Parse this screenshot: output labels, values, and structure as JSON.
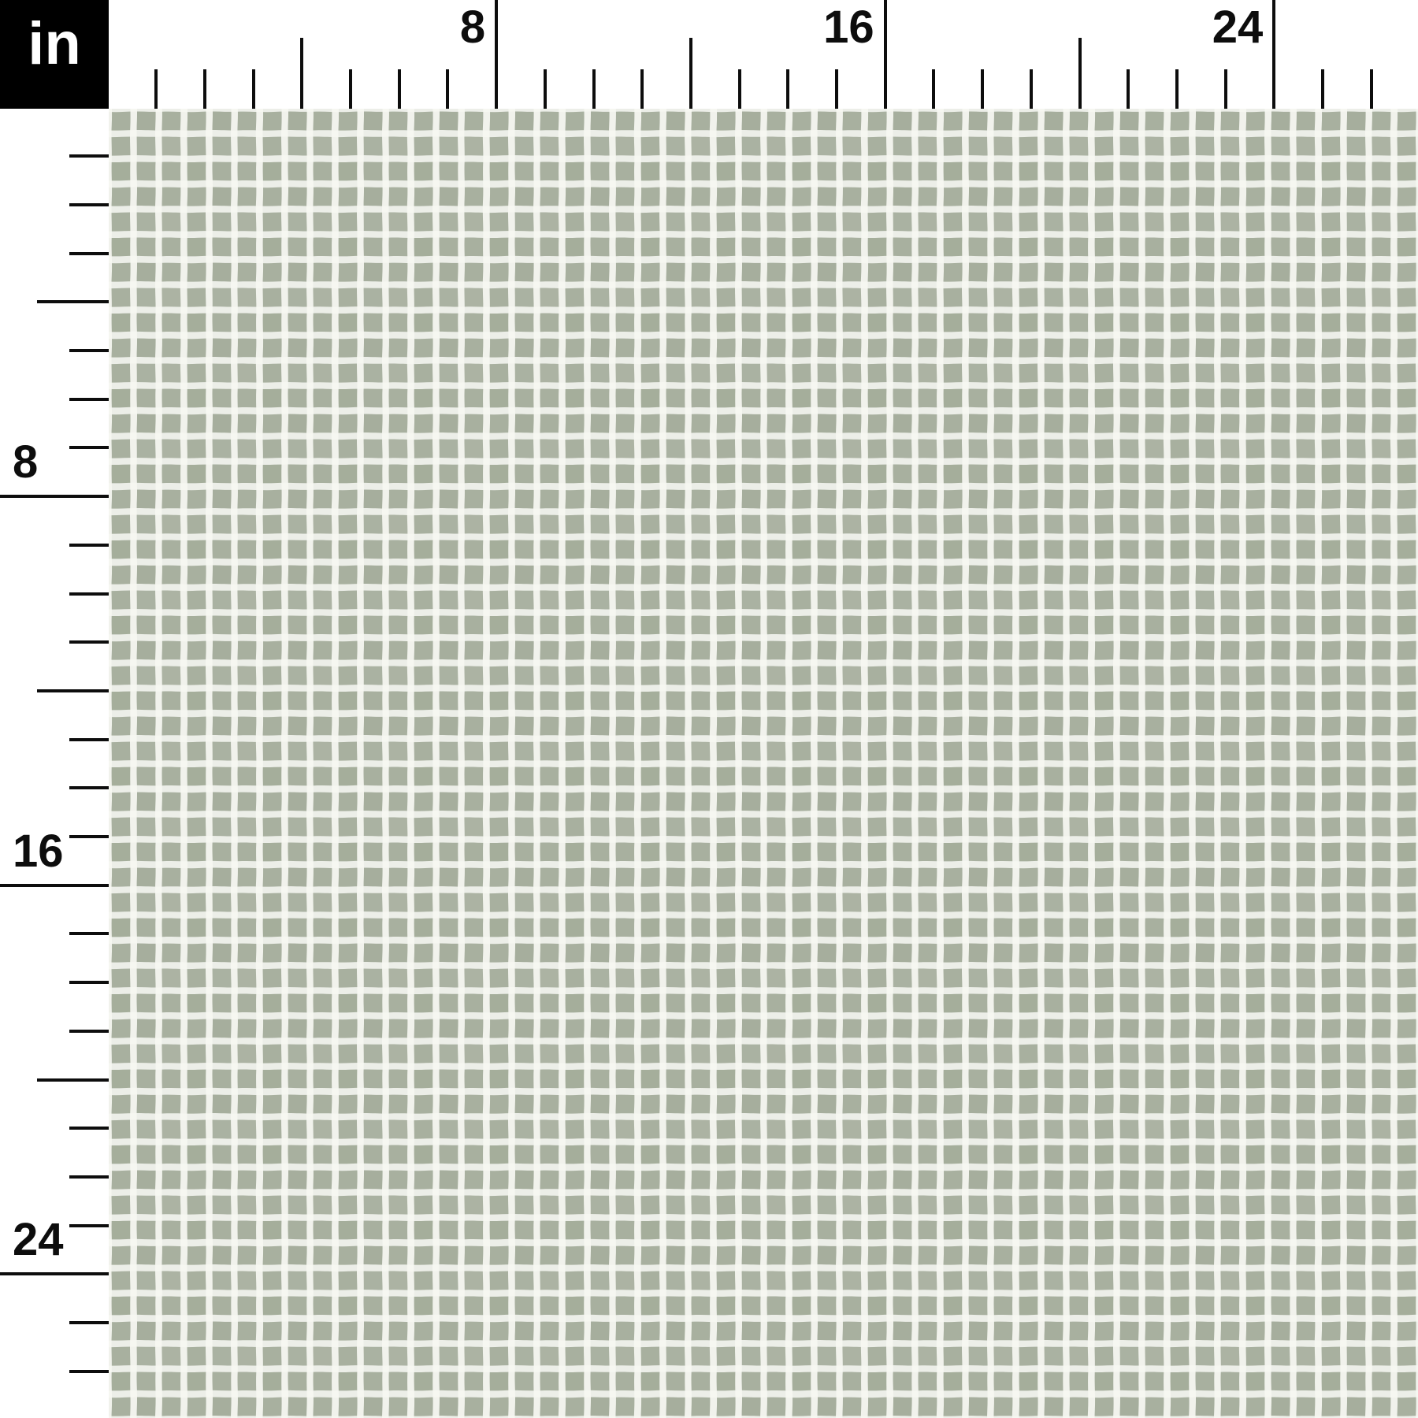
{
  "unit_box": {
    "label": "in"
  },
  "ruler": {
    "unit": "inches",
    "tick_interval_inches": 1,
    "visible_inches": 26,
    "medium_tick_inches": [
      4,
      12,
      20
    ],
    "major_tick_inches": [
      8,
      16,
      24
    ],
    "labels": [
      {
        "inch": 8,
        "text": "8"
      },
      {
        "inch": 16,
        "text": "16"
      },
      {
        "inch": 24,
        "text": "24"
      }
    ]
  },
  "fabric": {
    "pattern": "white gingham grid on sage green"
  },
  "colors": {
    "ruler_ink": "#0d0d0d",
    "ruler_bg": "#ffffff",
    "unit_box_bg": "#000000",
    "unit_box_text": "#ffffff",
    "fabric_green": "#a8b09f",
    "fabric_green_dark": "#98a28c",
    "fabric_green_light": "#b9c0b0",
    "fabric_stripe_white": "#f6f7f2"
  }
}
